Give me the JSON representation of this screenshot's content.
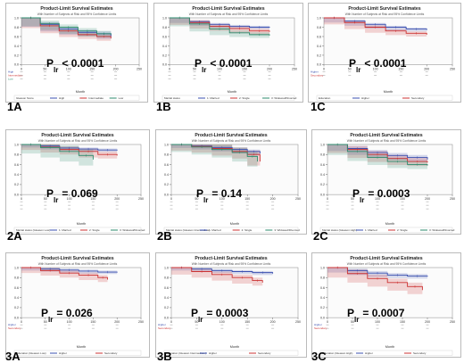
{
  "title": "Product-Limit Survival Estimates",
  "subtitle": "With Number of Subjects at Risk and 95% Confidence Limits",
  "xlabel": "Month",
  "chart_data": [
    {
      "label": "1A",
      "type": "line",
      "subtitle": "With Number of Subjects at Risk and 95% Confidence Limits",
      "pvalue": "< 0.0001",
      "legend_title": "Gleason Score",
      "xlim": [
        0,
        250
      ],
      "xticks": [
        0,
        50,
        100,
        150,
        200,
        250
      ],
      "ylim": [
        0,
        1
      ],
      "series": [
        {
          "name": "High",
          "color": "#3b50b0",
          "x": [
            0,
            40,
            80,
            120,
            160,
            190
          ],
          "y": [
            1,
            0.86,
            0.76,
            0.69,
            0.66,
            0.6
          ],
          "band": 0.05
        },
        {
          "name": "Intermediate",
          "color": "#cc3333",
          "x": [
            0,
            40,
            80,
            120,
            160,
            190
          ],
          "y": [
            1,
            0.83,
            0.72,
            0.64,
            0.6,
            0.56
          ],
          "band": 0.05
        },
        {
          "name": "Low",
          "color": "#2e8b6e",
          "x": [
            0,
            40,
            80,
            120,
            160,
            190
          ],
          "y": [
            1,
            0.88,
            0.8,
            0.72,
            0.66,
            0.64
          ],
          "band": 0.06
        }
      ],
      "risk_labels": [
        "High",
        "Intermediate",
        "Low"
      ]
    },
    {
      "label": "1B",
      "type": "line",
      "subtitle": "With Number of Subjects at Risk and 95% Confidence Limits",
      "pvalue": "< 0.0001",
      "legend_title": "Marital status",
      "xlim": [
        0,
        250
      ],
      "xticks": [
        0,
        50,
        100,
        150,
        200,
        250
      ],
      "ylim": [
        0,
        1
      ],
      "series": [
        {
          "name": "1: Married",
          "color": "#3b50b0",
          "x": [
            0,
            40,
            80,
            120,
            160,
            200
          ],
          "y": [
            1,
            0.92,
            0.86,
            0.82,
            0.8,
            0.79
          ],
          "band": 0.03
        },
        {
          "name": "2: Single",
          "color": "#cc3333",
          "x": [
            0,
            40,
            80,
            120,
            160,
            200
          ],
          "y": [
            1,
            0.9,
            0.82,
            0.77,
            0.72,
            0.7
          ],
          "band": 0.05
        },
        {
          "name": "3: Widowed/Divorced",
          "color": "#2e8b6e",
          "x": [
            0,
            40,
            80,
            120,
            160,
            200
          ],
          "y": [
            1,
            0.87,
            0.76,
            0.68,
            0.64,
            0.62
          ],
          "band": 0.05
        }
      ],
      "risk_labels": []
    },
    {
      "label": "1C",
      "type": "line",
      "subtitle": "With Number of Subjects at Risk and 95% Confidence Limits",
      "pvalue": "< 0.0001",
      "legend_title": "Education",
      "xlim": [
        0,
        250
      ],
      "xticks": [
        0,
        50,
        100,
        150,
        200,
        250
      ],
      "ylim": [
        0,
        1
      ],
      "series": [
        {
          "name": "Higher",
          "color": "#3b50b0",
          "x": [
            0,
            40,
            80,
            120,
            160,
            200
          ],
          "y": [
            1,
            0.93,
            0.86,
            0.8,
            0.76,
            0.74
          ],
          "band": 0.03
        },
        {
          "name": "Secondary",
          "color": "#cc3333",
          "x": [
            0,
            40,
            80,
            120,
            160,
            200
          ],
          "y": [
            1,
            0.9,
            0.8,
            0.72,
            0.67,
            0.64
          ],
          "band": 0.04
        }
      ],
      "risk_labels": [
        "Higher",
        "Secondary"
      ]
    },
    {
      "label": "2A",
      "type": "line",
      "subtitle": "With Number of Subjects at Risk and 95% Confidence Limits",
      "pvalue": "= 0.069",
      "legend_title": "Marital status (Gleason Low)",
      "xlim": [
        0,
        250
      ],
      "xticks": [
        0,
        50,
        100,
        150,
        200,
        250
      ],
      "ylim": [
        0,
        1
      ],
      "series": [
        {
          "name": "1: Married",
          "color": "#3b50b0",
          "x": [
            0,
            40,
            80,
            120,
            160,
            200
          ],
          "y": [
            1,
            0.97,
            0.93,
            0.91,
            0.89,
            0.88
          ],
          "band": 0.03
        },
        {
          "name": "2: Single",
          "color": "#cc3333",
          "x": [
            0,
            40,
            80,
            120,
            160,
            200
          ],
          "y": [
            1,
            0.95,
            0.9,
            0.86,
            0.8,
            0.78
          ],
          "band": 0.06
        },
        {
          "name": "3: Widowed/Divorced",
          "color": "#2e8b6e",
          "x": [
            0,
            40,
            80,
            120,
            150
          ],
          "y": [
            1,
            0.94,
            0.86,
            0.78,
            0.7
          ],
          "band": 0.12
        }
      ],
      "risk_labels": []
    },
    {
      "label": "2B",
      "type": "line",
      "subtitle": "With Number of Subjects at Risk and 95% Confidence Limits",
      "pvalue": "= 0.14",
      "legend_title": "Marital status (Gleason Intermediate)",
      "xlim": [
        0,
        250
      ],
      "xticks": [
        0,
        50,
        100,
        150,
        200,
        250
      ],
      "ylim": [
        0,
        1
      ],
      "series": [
        {
          "name": "1: Married",
          "color": "#3b50b0",
          "x": [
            0,
            40,
            80,
            120,
            150,
            175
          ],
          "y": [
            1,
            0.97,
            0.94,
            0.9,
            0.86,
            0.82
          ],
          "band": 0.04
        },
        {
          "name": "2: Single",
          "color": "#cc3333",
          "x": [
            0,
            40,
            80,
            120,
            150,
            175
          ],
          "y": [
            1,
            0.96,
            0.92,
            0.86,
            0.8,
            0.66
          ],
          "band": 0.08
        },
        {
          "name": "3: Widowed/Divorced",
          "color": "#2e8b6e",
          "x": [
            0,
            40,
            80,
            120,
            150,
            170
          ],
          "y": [
            1,
            0.95,
            0.9,
            0.84,
            0.76,
            0.66
          ],
          "band": 0.1
        }
      ],
      "risk_labels": []
    },
    {
      "label": "2C",
      "type": "line",
      "subtitle": "With Number of Subjects at Risk and 95% Confidence Limits",
      "pvalue": "= 0.0003",
      "legend_title": "Marital status (Gleason High)",
      "xlim": [
        0,
        250
      ],
      "xticks": [
        0,
        50,
        100,
        150,
        200,
        250
      ],
      "ylim": [
        0,
        1
      ],
      "series": [
        {
          "name": "1: Married",
          "color": "#3b50b0",
          "x": [
            0,
            40,
            80,
            120,
            160,
            200
          ],
          "y": [
            1,
            0.92,
            0.84,
            0.78,
            0.74,
            0.7
          ],
          "band": 0.05
        },
        {
          "name": "2: Single",
          "color": "#cc3333",
          "x": [
            0,
            40,
            80,
            120,
            160,
            200
          ],
          "y": [
            1,
            0.9,
            0.8,
            0.72,
            0.66,
            0.64
          ],
          "band": 0.07
        },
        {
          "name": "3: Widowed/Divorced",
          "color": "#2e8b6e",
          "x": [
            0,
            40,
            80,
            120,
            160,
            200
          ],
          "y": [
            1,
            0.86,
            0.74,
            0.66,
            0.6,
            0.58
          ],
          "band": 0.07
        }
      ],
      "risk_labels": []
    },
    {
      "label": "3A",
      "type": "line",
      "subtitle": "With Number of Subjects at Risk and 95% Confidence Limits",
      "pvalue": "= 0.026",
      "legend_title": "Education (Gleason Low)",
      "xlim": [
        0,
        250
      ],
      "xticks": [
        0,
        50,
        100,
        150,
        200,
        250
      ],
      "ylim": [
        0,
        1
      ],
      "series": [
        {
          "name": "Higher",
          "color": "#3b50b0",
          "x": [
            0,
            40,
            80,
            120,
            160,
            200
          ],
          "y": [
            1,
            0.97,
            0.95,
            0.93,
            0.91,
            0.9
          ],
          "band": 0.03
        },
        {
          "name": "Secondary",
          "color": "#cc3333",
          "x": [
            0,
            40,
            80,
            120,
            160,
            180
          ],
          "y": [
            1,
            0.94,
            0.89,
            0.85,
            0.8,
            0.76
          ],
          "band": 0.05
        }
      ],
      "risk_labels": [
        "Higher",
        "Secondary"
      ]
    },
    {
      "label": "3B",
      "type": "line",
      "subtitle": "With Number of Subjects at Risk and 95% Confidence Limits",
      "pvalue": "= 0.0003",
      "legend_title": "Education (Gleason Intermediate)",
      "xlim": [
        0,
        250
      ],
      "xticks": [
        0,
        50,
        100,
        150,
        200,
        250
      ],
      "ylim": [
        0,
        1
      ],
      "series": [
        {
          "name": "Higher",
          "color": "#3b50b0",
          "x": [
            0,
            40,
            80,
            120,
            160,
            200
          ],
          "y": [
            1,
            0.97,
            0.94,
            0.92,
            0.9,
            0.88
          ],
          "band": 0.03
        },
        {
          "name": "Secondary",
          "color": "#cc3333",
          "x": [
            0,
            40,
            80,
            120,
            160,
            180
          ],
          "y": [
            1,
            0.92,
            0.86,
            0.8,
            0.74,
            0.7
          ],
          "band": 0.06
        }
      ],
      "risk_labels": [
        "Higher",
        "Secondary"
      ]
    },
    {
      "label": "3C",
      "type": "line",
      "subtitle": "With Number of Subjects at Risk and 95% Confidence Limits",
      "pvalue": "= 0.0007",
      "legend_title": "Education (Gleason High)",
      "xlim": [
        0,
        250
      ],
      "xticks": [
        0,
        50,
        100,
        150,
        200,
        250
      ],
      "ylim": [
        0,
        1
      ],
      "series": [
        {
          "name": "Higher",
          "color": "#3b50b0",
          "x": [
            0,
            40,
            80,
            120,
            160,
            200
          ],
          "y": [
            1,
            0.94,
            0.89,
            0.85,
            0.83,
            0.82
          ],
          "band": 0.04
        },
        {
          "name": "Secondary",
          "color": "#cc3333",
          "x": [
            0,
            40,
            80,
            120,
            160,
            190
          ],
          "y": [
            1,
            0.88,
            0.78,
            0.7,
            0.62,
            0.55
          ],
          "band": 0.08
        }
      ],
      "risk_labels": [
        "Higher",
        "Secondary"
      ]
    }
  ]
}
